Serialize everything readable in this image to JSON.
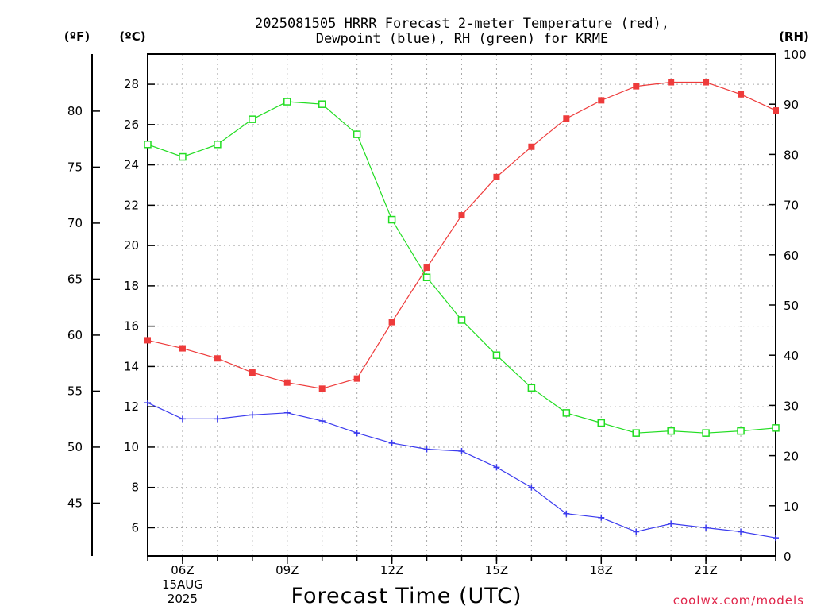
{
  "chart_data": {
    "type": "line",
    "title_line1": "2025081505 HRRR Forecast 2-meter Temperature (red),",
    "title_line2": "Dewpoint (blue), RH (green) for KRME",
    "unit_f": "(ºF)",
    "unit_c": "(ºC)",
    "unit_rh": "(RH)",
    "xlabel": "Forecast Time (UTC)",
    "credit": "coolwx.com/models",
    "x_hours": [
      5,
      6,
      7,
      8,
      9,
      10,
      11,
      12,
      13,
      14,
      15,
      16,
      17,
      18,
      19,
      20,
      21,
      22,
      23
    ],
    "x_ticks": [
      {
        "hour": 6,
        "label": "06Z",
        "sub1": "15AUG",
        "sub2": "2025"
      },
      {
        "hour": 9,
        "label": "09Z"
      },
      {
        "hour": 12,
        "label": "12Z"
      },
      {
        "hour": 15,
        "label": "15Z"
      },
      {
        "hour": 18,
        "label": "18Z"
      },
      {
        "hour": 21,
        "label": "21Z"
      }
    ],
    "xlim": [
      5,
      23
    ],
    "celsius_ticks": [
      6,
      8,
      10,
      12,
      14,
      16,
      18,
      20,
      22,
      24,
      26,
      28
    ],
    "celsius_range": [
      4.6,
      29.5
    ],
    "fahrenheit_ticks": [
      45,
      50,
      55,
      60,
      65,
      70,
      75,
      80
    ],
    "rh_ticks": [
      0,
      10,
      20,
      30,
      40,
      50,
      60,
      70,
      80,
      90,
      100
    ],
    "rh_range": [
      0,
      100
    ],
    "grid": true,
    "series": [
      {
        "name": "Temperature",
        "color": "#ee3b3b",
        "marker": "filled-square",
        "axis": "celsius",
        "values": [
          15.3,
          14.9,
          14.4,
          13.7,
          13.2,
          12.9,
          13.4,
          16.2,
          18.9,
          21.5,
          23.4,
          24.9,
          26.3,
          27.2,
          27.9,
          28.1,
          28.1,
          27.5,
          26.7
        ]
      },
      {
        "name": "Dewpoint",
        "color": "#3b3bee",
        "marker": "plus",
        "axis": "celsius",
        "values": [
          12.2,
          11.4,
          11.4,
          11.6,
          11.7,
          11.3,
          10.7,
          10.2,
          9.9,
          9.8,
          9.0,
          8.0,
          6.7,
          6.5,
          5.8,
          6.2,
          6.0,
          5.8,
          5.5
        ]
      },
      {
        "name": "RH",
        "color": "#22dd22",
        "marker": "open-square",
        "axis": "rh",
        "values": [
          82,
          79.5,
          82,
          87,
          90.5,
          90,
          84,
          67,
          55.5,
          47,
          40,
          33.5,
          28.5,
          26.5,
          24.5,
          24.9,
          24.5,
          24.9,
          25.5
        ]
      }
    ]
  }
}
